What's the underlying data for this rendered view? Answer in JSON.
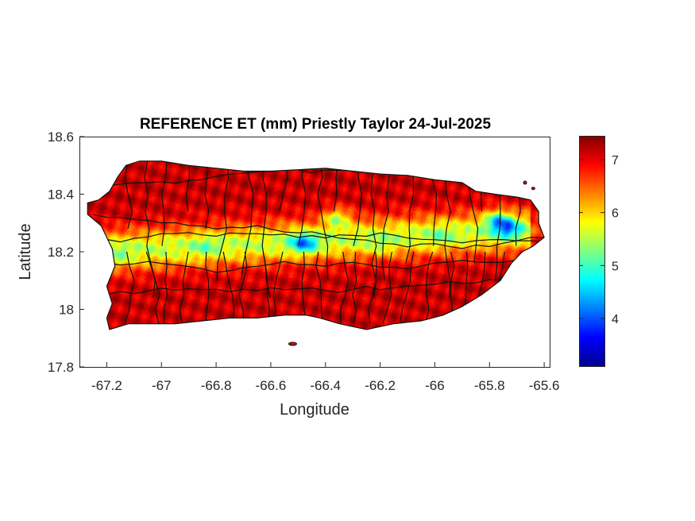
{
  "chart_data": {
    "type": "heatmap",
    "title": "REFERENCE ET (mm) Priestly Taylor 24-Jul-2025",
    "xlabel": "Longitude",
    "ylabel": "Latitude",
    "xlim": [
      -67.3,
      -65.58
    ],
    "ylim": [
      17.8,
      18.6
    ],
    "xticks": [
      -67.2,
      -67,
      -66.8,
      -66.6,
      -66.4,
      -66.2,
      -66,
      -65.8,
      -65.6
    ],
    "xtick_labels": [
      "-67.2",
      "-67",
      "-66.8",
      "-66.6",
      "-66.4",
      "-66.2",
      "-66",
      "-65.8",
      "-65.6"
    ],
    "yticks": [
      17.8,
      18,
      18.2,
      18.4,
      18.6
    ],
    "ytick_labels": [
      "17.8",
      "18",
      "18.2",
      "18.4",
      "18.6"
    ],
    "colormap": "jet",
    "colorbar": {
      "clim": [
        3.1,
        7.45
      ],
      "ticks": [
        4,
        5,
        6,
        7
      ],
      "tick_labels": [
        "4",
        "5",
        "6",
        "7"
      ],
      "location": "right"
    },
    "pattern": {
      "coast_and_south": 7.1,
      "central_mountain_band": 5.3,
      "minimum_spots": [
        {
          "lon": -66.48,
          "lat": 18.23,
          "value": 3.6
        },
        {
          "lon": -66.36,
          "lat": 18.32,
          "value": 4.0
        },
        {
          "lon": -65.77,
          "lat": 18.31,
          "value": 3.7
        },
        {
          "lon": -65.73,
          "lat": 18.28,
          "value": 3.9
        },
        {
          "lon": -67.16,
          "lat": 18.19,
          "value": 4.9
        },
        {
          "lon": -66.84,
          "lat": 18.22,
          "value": 4.8
        },
        {
          "lon": -66.2,
          "lat": 18.22,
          "value": 4.9
        },
        {
          "lon": -65.98,
          "lat": 18.26,
          "value": 4.9
        }
      ]
    },
    "grid": false
  }
}
